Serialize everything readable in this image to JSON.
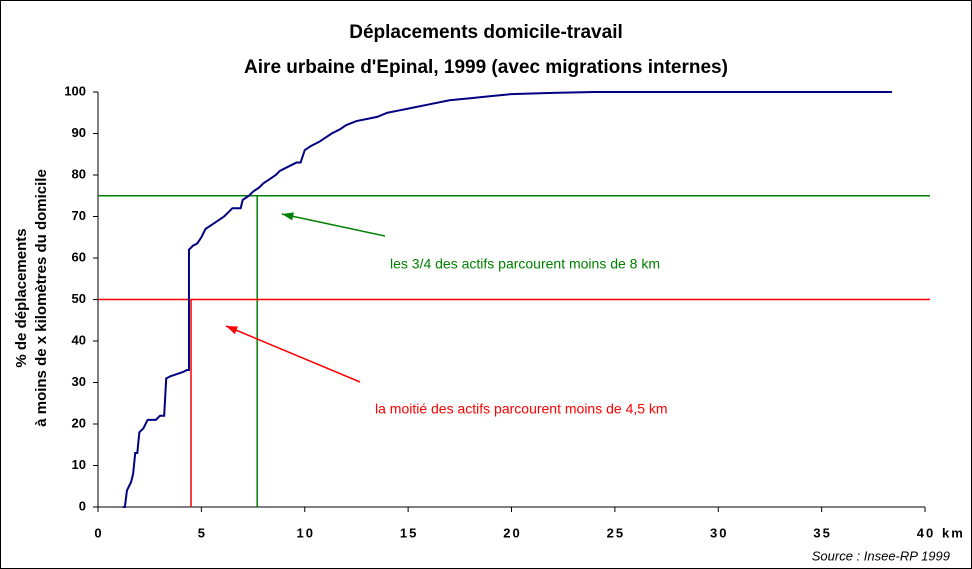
{
  "chart_data": {
    "type": "line",
    "title": "Déplacements domicile-travail",
    "subtitle": "Aire urbaine d'Epinal, 1999 (avec migrations internes)",
    "y_label": [
      "% de déplacements",
      "à moins de x kilomètres du domicile"
    ],
    "x_label": "km",
    "source": "Source : Insee-RP 1999",
    "x": [
      1.2,
      1.3,
      1.4,
      1.6,
      1.7,
      1.8,
      1.9,
      2.0,
      2.2,
      2.4,
      2.8,
      3.0,
      3.2,
      3.3,
      3.5,
      3.8,
      4.1,
      4.3,
      4.4,
      4.4,
      4.6,
      4.8,
      5.0,
      5.2,
      5.5,
      5.8,
      6.1,
      6.5,
      6.9,
      7.0,
      7.3,
      7.5,
      7.8,
      8.0,
      8.3,
      8.6,
      8.8,
      9.2,
      9.6,
      9.8,
      10.0,
      10.3,
      10.7,
      11.0,
      11.3,
      11.7,
      12.0,
      12.5,
      13.0,
      13.5,
      14.0,
      14.5,
      15.0,
      16.0,
      17.0,
      18.0,
      19.0,
      20.0,
      22.0,
      24.0,
      38.4
    ],
    "series": [
      {
        "color": "#000080",
        "values": [
          0,
          0,
          4,
          6,
          8,
          13,
          13,
          18,
          19,
          21,
          21,
          22,
          22,
          31,
          31.5,
          32,
          32.5,
          33,
          33,
          62,
          63,
          63.5,
          65,
          67,
          68,
          69,
          70,
          72,
          72,
          74,
          75,
          76,
          77,
          78,
          79,
          80,
          81,
          82,
          83,
          83,
          86,
          87,
          88,
          89,
          90,
          91,
          92,
          93,
          93.5,
          94,
          95,
          95.5,
          96,
          97,
          98,
          98.5,
          99,
          99.5,
          99.8,
          100,
          100
        ]
      }
    ],
    "xlim": [
      0,
      40
    ],
    "xticks": [
      0,
      5,
      10,
      15,
      20,
      25,
      30,
      35,
      40
    ],
    "ylim": [
      0,
      100
    ],
    "yticks": [
      0,
      10,
      20,
      30,
      40,
      50,
      60,
      70,
      80,
      90,
      100
    ],
    "reference_lines": [
      {
        "x": 7.7,
        "y": 75,
        "color": "#008000",
        "text": "les 3/4 des actifs parcourent moins de 8 km"
      },
      {
        "x": 4.5,
        "y": 50,
        "color": "#ff0000",
        "text": "la moitié des actifs parcourent moins de 4,5 km"
      }
    ]
  }
}
